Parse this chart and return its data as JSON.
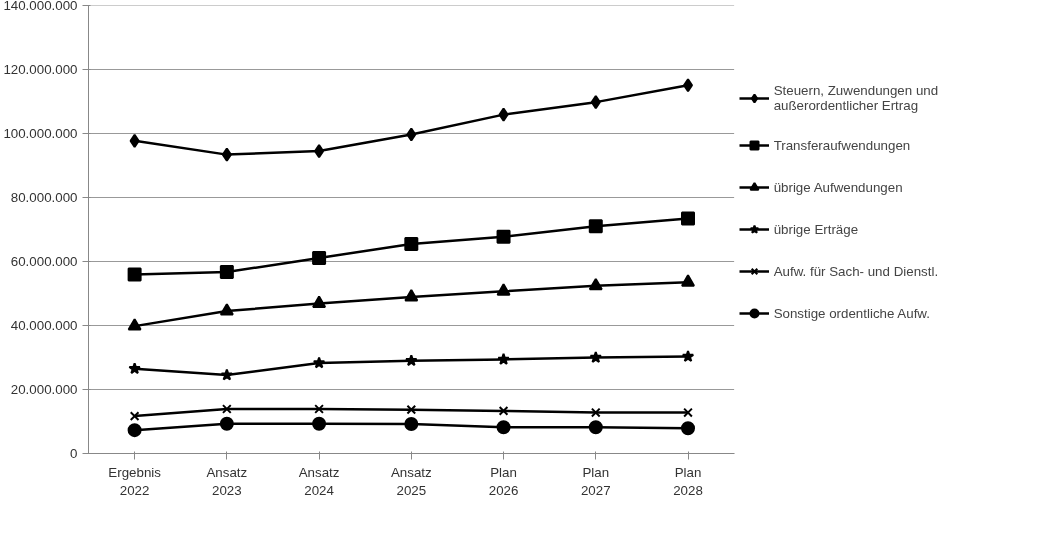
{
  "chart_data": {
    "type": "line",
    "categories": [
      "Ergebnis 2022",
      "Ansatz 2023",
      "Ansatz 2024",
      "Ansatz 2025",
      "Plan 2026",
      "Plan 2027",
      "Plan 2028"
    ],
    "series": [
      {
        "name": "Steuern, Zuwendungen und außerordentlicher Ertrag",
        "color": "#000000",
        "marker": "diamond",
        "values": [
          97700000,
          93400000,
          94500000,
          99700000,
          105900000,
          109800000,
          115100000
        ]
      },
      {
        "name": "Transferaufwendungen",
        "color": "#000000",
        "marker": "square",
        "values": [
          55900000,
          56700000,
          61100000,
          65500000,
          67700000,
          71000000,
          73400000
        ]
      },
      {
        "name": "übrige Aufwendungen",
        "color": "#000000",
        "marker": "triangle",
        "values": [
          39800000,
          44500000,
          46900000,
          48900000,
          50700000,
          52400000,
          53500000
        ]
      },
      {
        "name": "übrige Erträge",
        "color": "#000000",
        "marker": "star",
        "values": [
          26500000,
          24500000,
          28300000,
          29000000,
          29400000,
          30000000,
          30300000
        ]
      },
      {
        "name": "Aufw. für Sach- und Dienstl.",
        "color": "#000000",
        "marker": "cross",
        "values": [
          11700000,
          13900000,
          13900000,
          13700000,
          13300000,
          12800000,
          12800000
        ]
      },
      {
        "name": "Sonstige ordentliche Aufw.",
        "color": "#000000",
        "marker": "circle",
        "values": [
          7300000,
          9300000,
          9300000,
          9200000,
          8200000,
          8200000,
          7900000
        ]
      }
    ],
    "ylim": [
      0,
      140000000
    ],
    "yticks": [
      {
        "value": 0,
        "label": "0"
      },
      {
        "value": 20000000,
        "label": "20.000.000"
      },
      {
        "value": 40000000,
        "label": "40.000.000"
      },
      {
        "value": 60000000,
        "label": "60.000.000"
      },
      {
        "value": 80000000,
        "label": "80.000.000"
      },
      {
        "value": 100000000,
        "label": "100.000.000"
      },
      {
        "value": 120000000,
        "label": "120.000.000"
      },
      {
        "value": 140000000,
        "label": "140.000.000"
      }
    ],
    "grid": "y",
    "legend": "right",
    "line_style": "solid"
  }
}
